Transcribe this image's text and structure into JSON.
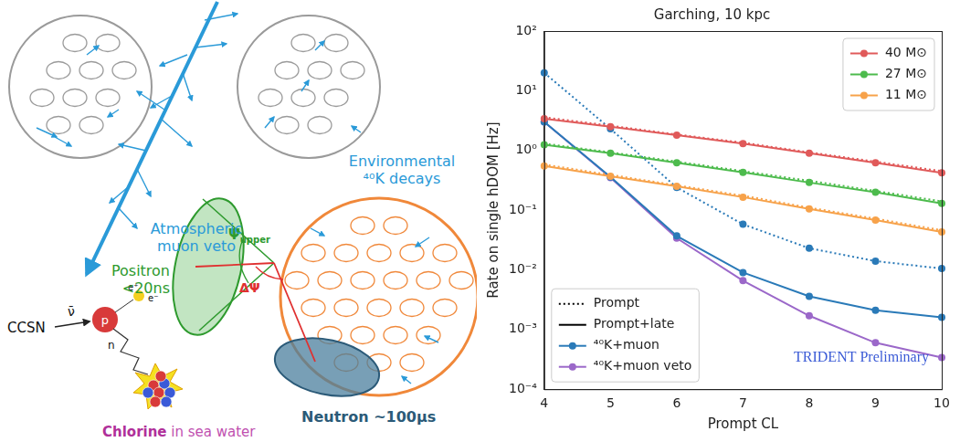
{
  "diagram": {
    "labels": {
      "muon_veto": "Atmospheric muon veto",
      "potassium": "Environmental ⁴⁰K decays",
      "positron": "Positron <20ns",
      "neutron": "Neutron ~100µs",
      "chlorine": "Chlorine in sea water",
      "source": "CCSN",
      "antineutrino": "ν̄",
      "proton": "p",
      "neutron_particle": "n",
      "positron_particle": "e⁺",
      "electron": "e⁻",
      "psi_upper": {
        "symbol": "Ψ",
        "subscript": "upper"
      },
      "delta_psi": "ΔΨ"
    }
  },
  "chart_data": {
    "type": "line",
    "title": "Garching, 10 kpc",
    "x_label": "Prompt CL",
    "y_label": "Rate on single hDOM [Hz]",
    "x": [
      4,
      5,
      6,
      7,
      8,
      9,
      10
    ],
    "xlim": [
      4,
      10
    ],
    "xticks": [
      4,
      5,
      6,
      7,
      8,
      9,
      10
    ],
    "ylim": [
      0.0001,
      100
    ],
    "yticks": [
      {
        "value": 0.0001,
        "label": "10⁻⁴"
      },
      {
        "value": 0.001,
        "label": "10⁻³"
      },
      {
        "value": 0.01,
        "label": "10⁻²"
      },
      {
        "value": 0.1,
        "label": "10⁻¹"
      },
      {
        "value": 1,
        "label": "10⁰"
      },
      {
        "value": 10,
        "label": "10¹"
      },
      {
        "value": 100,
        "label": "10²"
      }
    ],
    "log": "y",
    "grid": false,
    "series": [
      {
        "name": "40 M⊙",
        "color": "#e05a5a",
        "line_style": "dotted",
        "marker": "none",
        "values": [
          3.6,
          2.6,
          1.85,
          1.35,
          0.93,
          0.65,
          0.45
        ]
      },
      {
        "name": "40 M⊙",
        "color": "#e05a5a",
        "line_style": "solid",
        "marker": "circle",
        "values": [
          3.4,
          2.5,
          1.8,
          1.3,
          0.9,
          0.62,
          0.42
        ]
      },
      {
        "name": "27 M⊙",
        "color": "#4dbb4d",
        "line_style": "dotted",
        "marker": "none",
        "values": [
          1.3,
          0.93,
          0.65,
          0.45,
          0.31,
          0.21,
          0.14
        ]
      },
      {
        "name": "27 M⊙",
        "color": "#4dbb4d",
        "line_style": "solid",
        "marker": "circle",
        "values": [
          1.25,
          0.9,
          0.62,
          0.43,
          0.29,
          0.2,
          0.13
        ]
      },
      {
        "name": "11 M⊙",
        "color": "#f7a24a",
        "line_style": "dotted",
        "marker": "none",
        "values": [
          0.58,
          0.39,
          0.26,
          0.175,
          0.11,
          0.072,
          0.046
        ]
      },
      {
        "name": "11 M⊙",
        "color": "#f7a24a",
        "line_style": "solid",
        "marker": "circle",
        "values": [
          0.55,
          0.37,
          0.25,
          0.165,
          0.105,
          0.068,
          0.043
        ]
      },
      {
        "name": "⁴⁰K+muon",
        "color": "#2a7ab8",
        "line_style": "dotted",
        "marker": "circle",
        "values": [
          20,
          2.3,
          0.24,
          0.058,
          0.023,
          0.014,
          0.0105
        ]
      },
      {
        "name": "⁴⁰K+muon",
        "color": "#2a7ab8",
        "line_style": "solid",
        "marker": "circle",
        "values": [
          3.0,
          0.36,
          0.037,
          0.009,
          0.0036,
          0.0021,
          0.0016
        ]
      },
      {
        "name": "⁴⁰K+muon veto",
        "color": "#9b68c9",
        "line_style": "solid",
        "marker": "circle",
        "values": [
          3.0,
          0.35,
          0.034,
          0.0066,
          0.0017,
          0.0006,
          0.00034
        ]
      }
    ],
    "legends": [
      {
        "legend": "upper right",
        "entries": [
          {
            "name": "40 M⊙",
            "color": "#e05a5a",
            "line_style": "solid",
            "marker": "circle"
          },
          {
            "name": "27 M⊙",
            "color": "#4dbb4d",
            "line_style": "solid",
            "marker": "circle"
          },
          {
            "name": "11 M⊙",
            "color": "#f7a24a",
            "line_style": "solid",
            "marker": "circle"
          }
        ]
      },
      {
        "legend": "lower left",
        "entries": [
          {
            "name": "Prompt",
            "color": "#000000",
            "line_style": "dotted",
            "marker": "none"
          },
          {
            "name": "Prompt+late",
            "color": "#000000",
            "line_style": "solid",
            "marker": "none"
          },
          {
            "name": "⁴⁰K+muon",
            "color": "#2a7ab8",
            "line_style": "solid",
            "marker": "circle"
          },
          {
            "name": "⁴⁰K+muon veto",
            "color": "#9b68c9",
            "line_style": "solid",
            "marker": "circle"
          }
        ]
      }
    ],
    "annotations": [
      {
        "text": "TRIDENT Preliminary",
        "color": "#3b5bd6"
      }
    ]
  }
}
